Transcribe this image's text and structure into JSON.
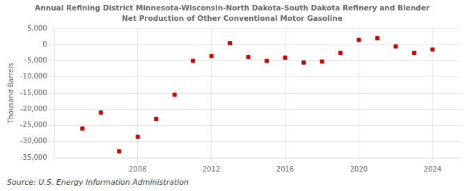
{
  "chart_data": {
    "type": "scatter",
    "title": "Annual Refining District Minnesota-Wisconsin-North Dakota-South Dakota Refinery and Blender",
    "subtitle": "Net Production of Other Conventional Motor Gasoline",
    "y_label": "Thousand Barrels",
    "annotations": [
      "Source: U.S. Energy Information Administration"
    ],
    "x": [
      2005,
      2006,
      2007,
      2008,
      2009,
      2010,
      2011,
      2012,
      2013,
      2014,
      2015,
      2016,
      2017,
      2018,
      2019,
      2020,
      2021,
      2022,
      2023,
      2024
    ],
    "values": [
      -26000,
      -21000,
      -33000,
      -28500,
      -23000,
      -15500,
      -5000,
      -3500,
      500,
      -3800,
      -5000,
      -4000,
      -5500,
      -5200,
      -2500,
      1500,
      2000,
      -500,
      -2500,
      -1500
    ],
    "color": "#cc0000",
    "marker": "square",
    "xlim": [
      2003.5,
      2025.5
    ],
    "xticks": [
      2008,
      2012,
      2016,
      2020,
      2024
    ],
    "ylim": [
      -35000,
      5000
    ],
    "yticks": [
      {
        "value": -35000,
        "label": "-35,000"
      },
      {
        "value": -30000,
        "label": "-30,000"
      },
      {
        "value": -25000,
        "label": "-25,000"
      },
      {
        "value": -20000,
        "label": "-20,000"
      },
      {
        "value": -15000,
        "label": "-15,000"
      },
      {
        "value": -10000,
        "label": "-10,000"
      },
      {
        "value": -5000,
        "label": "-5,000"
      },
      0,
      {
        "value": 5000,
        "label": "5,000"
      }
    ],
    "grid": true
  }
}
